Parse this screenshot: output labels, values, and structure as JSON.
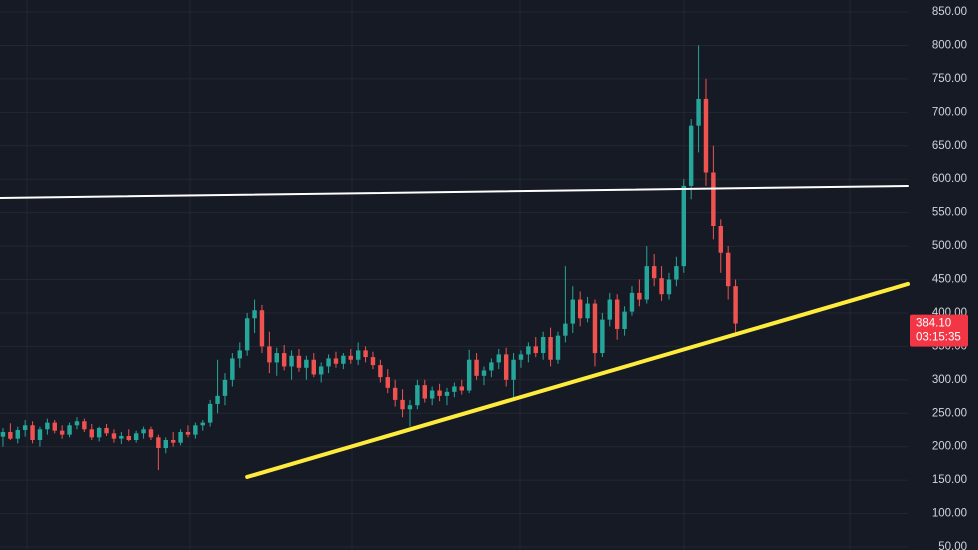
{
  "chart_data": {
    "type": "candlestick",
    "up_color": "#26a69a",
    "down_color": "#ef5350",
    "ylim": [
      50,
      850
    ],
    "xlim": [
      -0.4,
      122.3
    ],
    "yticks": [
      {
        "value": 850,
        "label": "850.00"
      },
      {
        "value": 800,
        "label": "800.00"
      },
      {
        "value": 750,
        "label": "750.00"
      },
      {
        "value": 700,
        "label": "700.00"
      },
      {
        "value": 650,
        "label": "650.00"
      },
      {
        "value": 600,
        "label": "600.00"
      },
      {
        "value": 550,
        "label": "550.00"
      },
      {
        "value": 500,
        "label": "500.00"
      },
      {
        "value": 450,
        "label": "450.00"
      },
      {
        "value": 400,
        "label": "400.00"
      },
      {
        "value": 350,
        "label": "350.00"
      },
      {
        "value": 300,
        "label": "300.00"
      },
      {
        "value": 250,
        "label": "250.00"
      },
      {
        "value": 200,
        "label": "200.00"
      },
      {
        "value": 150,
        "label": "150.00"
      },
      {
        "value": 100,
        "label": "100.00"
      },
      {
        "value": 50,
        "label": "50.00"
      }
    ],
    "grid": true,
    "ohlc": [
      [
        215,
        228,
        200,
        222
      ],
      [
        222,
        235,
        210,
        212
      ],
      [
        212,
        230,
        205,
        225
      ],
      [
        225,
        240,
        215,
        232
      ],
      [
        232,
        238,
        205,
        210
      ],
      [
        210,
        230,
        200,
        226
      ],
      [
        226,
        242,
        218,
        236
      ],
      [
        236,
        240,
        220,
        224
      ],
      [
        224,
        232,
        212,
        218
      ],
      [
        218,
        236,
        214,
        232
      ],
      [
        232,
        244,
        226,
        238
      ],
      [
        238,
        242,
        222,
        226
      ],
      [
        226,
        234,
        210,
        214
      ],
      [
        214,
        230,
        208,
        228
      ],
      [
        228,
        234,
        216,
        220
      ],
      [
        220,
        226,
        206,
        212
      ],
      [
        212,
        222,
        204,
        216
      ],
      [
        216,
        226,
        208,
        210
      ],
      [
        210,
        224,
        206,
        220
      ],
      [
        220,
        230,
        212,
        226
      ],
      [
        226,
        230,
        210,
        214
      ],
      [
        214,
        218,
        165,
        198
      ],
      [
        198,
        214,
        190,
        210
      ],
      [
        210,
        222,
        200,
        206
      ],
      [
        206,
        226,
        202,
        222
      ],
      [
        222,
        232,
        214,
        218
      ],
      [
        218,
        236,
        212,
        232
      ],
      [
        232,
        240,
        224,
        236
      ],
      [
        236,
        270,
        230,
        264
      ],
      [
        264,
        330,
        250,
        276
      ],
      [
        276,
        310,
        262,
        300
      ],
      [
        300,
        340,
        290,
        332
      ],
      [
        332,
        356,
        318,
        344
      ],
      [
        344,
        400,
        336,
        392
      ],
      [
        392,
        420,
        370,
        404
      ],
      [
        404,
        412,
        340,
        350
      ],
      [
        350,
        372,
        310,
        326
      ],
      [
        326,
        348,
        306,
        340
      ],
      [
        340,
        352,
        314,
        320
      ],
      [
        320,
        344,
        300,
        336
      ],
      [
        336,
        346,
        312,
        318
      ],
      [
        318,
        336,
        300,
        330
      ],
      [
        330,
        340,
        304,
        308
      ],
      [
        308,
        326,
        296,
        320
      ],
      [
        320,
        338,
        310,
        332
      ],
      [
        332,
        342,
        318,
        324
      ],
      [
        324,
        340,
        316,
        336
      ],
      [
        336,
        346,
        324,
        330
      ],
      [
        330,
        356,
        322,
        344
      ],
      [
        344,
        350,
        326,
        334
      ],
      [
        334,
        342,
        316,
        322
      ],
      [
        322,
        330,
        296,
        304
      ],
      [
        304,
        316,
        280,
        288
      ],
      [
        288,
        300,
        260,
        270
      ],
      [
        270,
        286,
        244,
        256
      ],
      [
        256,
        270,
        230,
        262
      ],
      [
        262,
        300,
        256,
        292
      ],
      [
        292,
        300,
        266,
        272
      ],
      [
        272,
        290,
        262,
        284
      ],
      [
        284,
        294,
        268,
        276
      ],
      [
        276,
        288,
        262,
        282
      ],
      [
        282,
        296,
        274,
        290
      ],
      [
        290,
        300,
        278,
        284
      ],
      [
        284,
        345,
        280,
        330
      ],
      [
        330,
        340,
        300,
        306
      ],
      [
        306,
        320,
        292,
        314
      ],
      [
        314,
        332,
        304,
        326
      ],
      [
        326,
        346,
        316,
        338
      ],
      [
        338,
        348,
        290,
        300
      ],
      [
        300,
        340,
        272,
        330
      ],
      [
        330,
        344,
        318,
        338
      ],
      [
        338,
        356,
        326,
        350
      ],
      [
        350,
        364,
        334,
        340
      ],
      [
        340,
        372,
        330,
        364
      ],
      [
        364,
        378,
        320,
        330
      ],
      [
        330,
        372,
        324,
        366
      ],
      [
        366,
        470,
        356,
        384
      ],
      [
        384,
        440,
        370,
        420
      ],
      [
        420,
        432,
        380,
        392
      ],
      [
        392,
        424,
        386,
        414
      ],
      [
        414,
        420,
        320,
        340
      ],
      [
        340,
        400,
        334,
        390
      ],
      [
        390,
        430,
        380,
        420
      ],
      [
        420,
        428,
        360,
        376
      ],
      [
        376,
        410,
        366,
        402
      ],
      [
        402,
        440,
        396,
        430
      ],
      [
        430,
        450,
        410,
        420
      ],
      [
        420,
        500,
        414,
        470
      ],
      [
        470,
        488,
        440,
        452
      ],
      [
        452,
        470,
        418,
        428
      ],
      [
        428,
        460,
        420,
        450
      ],
      [
        450,
        484,
        440,
        470
      ],
      [
        470,
        600,
        460,
        590
      ],
      [
        590,
        690,
        570,
        680
      ],
      [
        680,
        800,
        640,
        720
      ],
      [
        720,
        750,
        590,
        610
      ],
      [
        610,
        650,
        510,
        530
      ],
      [
        530,
        540,
        460,
        490
      ],
      [
        490,
        500,
        420,
        440
      ],
      [
        440,
        450,
        365,
        384.1
      ]
    ],
    "trend_lines": [
      {
        "color": "#ffffff",
        "x": [
          -0.4,
          122.3
        ],
        "y": [
          571.9,
          589.8
        ]
      },
      {
        "color": "#ffeb3b",
        "x": [
          33,
          122.3
        ],
        "y": [
          154.7,
          443.3
        ]
      }
    ],
    "last_price": {
      "value": 384.1,
      "label": "384.10"
    },
    "countdown": "03:15:35"
  }
}
